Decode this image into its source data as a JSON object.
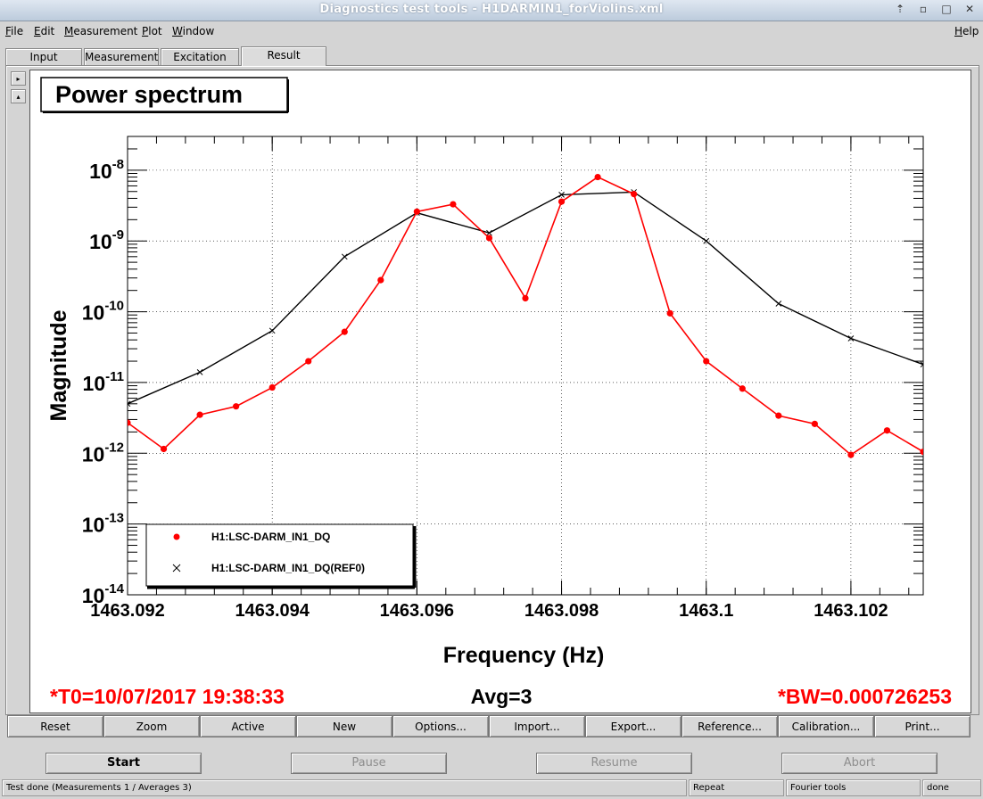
{
  "window": {
    "title": "Diagnostics test tools - H1DARMIN1_forViolins.xml",
    "controls": [
      "⇡",
      "▫",
      "□",
      "✕"
    ]
  },
  "menubar": {
    "items": [
      "File",
      "Edit",
      "Measurement",
      "Plot",
      "Window"
    ],
    "help": "Help"
  },
  "tabs": [
    {
      "label": "Input"
    },
    {
      "label": "Measurement"
    },
    {
      "label": "Excitation"
    },
    {
      "label": "Result",
      "active": true
    }
  ],
  "side_arrows": [
    "▸",
    "▴"
  ],
  "plot": {
    "title": "Power spectrum",
    "footer_left": "*T0=10/07/2017 19:38:33",
    "footer_center": "Avg=3",
    "footer_right": "*BW=0.000726253",
    "colors": {
      "series1": "#ff0000",
      "series2": "#000000",
      "footer": "#ff0000"
    }
  },
  "chart_data": {
    "type": "line",
    "title": "Power spectrum",
    "xlabel": "Frequency (Hz)",
    "ylabel": "Magnitude",
    "xlim": [
      1463.092,
      1463.103
    ],
    "ylim": [
      1e-14,
      3e-08
    ],
    "y_scale": "log",
    "grid": true,
    "legend_placement": "bottom-left",
    "x_ticks": [
      {
        "value": 1463.092,
        "label": "1463.092"
      },
      {
        "value": 1463.094,
        "label": "1463.094"
      },
      {
        "value": 1463.096,
        "label": "1463.096"
      },
      {
        "value": 1463.098,
        "label": "1463.098"
      },
      {
        "value": 1463.1,
        "label": "1463.1"
      },
      {
        "value": 1463.102,
        "label": "1463.102"
      }
    ],
    "y_ticks": [
      {
        "value": 1e-08,
        "mantissa": "10",
        "exp": "-8"
      },
      {
        "value": 1e-09,
        "mantissa": "10",
        "exp": "-9"
      },
      {
        "value": 1e-10,
        "mantissa": "10",
        "exp": "-10"
      },
      {
        "value": 1e-11,
        "mantissa": "10",
        "exp": "-11"
      },
      {
        "value": 1e-12,
        "mantissa": "10",
        "exp": "-12"
      },
      {
        "value": 1e-13,
        "mantissa": "10",
        "exp": "-13"
      },
      {
        "value": 1e-14,
        "mantissa": "10",
        "exp": "-14"
      }
    ],
    "series": [
      {
        "name": "H1:LSC-DARM_IN1_DQ",
        "marker": "circle",
        "color": "#ff0000",
        "x": [
          1463.092,
          1463.0925,
          1463.093,
          1463.0935,
          1463.094,
          1463.0945,
          1463.095,
          1463.0955,
          1463.096,
          1463.0965,
          1463.097,
          1463.0975,
          1463.098,
          1463.0985,
          1463.099,
          1463.0995,
          1463.1,
          1463.1005,
          1463.101,
          1463.1015,
          1463.102,
          1463.1025,
          1463.103,
          1463.1032
        ],
        "y": [
          2.7e-12,
          1.15e-12,
          3.5e-12,
          4.6e-12,
          8.5e-12,
          2e-11,
          5.2e-11,
          2.8e-10,
          2.6e-09,
          3.3e-09,
          1.1e-09,
          1.55e-10,
          3.6e-09,
          8e-09,
          4.6e-09,
          9.5e-11,
          2e-11,
          8.2e-12,
          3.4e-12,
          2.6e-12,
          9.5e-13,
          2.1e-12,
          1.05e-12,
          8.5e-13
        ]
      },
      {
        "name": "H1:LSC-DARM_IN1_DQ(REF0)",
        "marker": "cross",
        "color": "#000000",
        "x": [
          1463.092,
          1463.093,
          1463.094,
          1463.095,
          1463.096,
          1463.097,
          1463.098,
          1463.099,
          1463.1,
          1463.101,
          1463.102,
          1463.103,
          1463.1032
        ],
        "y": [
          5e-12,
          1.4e-11,
          5.4e-11,
          6e-10,
          2.5e-09,
          1.3e-09,
          4.5e-09,
          4.9e-09,
          1e-09,
          1.3e-10,
          4.2e-11,
          1.8e-11,
          1.65e-11
        ]
      }
    ]
  },
  "plot_buttons": [
    "Reset",
    "Zoom",
    "Active",
    "New",
    "Options...",
    "Import...",
    "Export...",
    "Reference...",
    "Calibration...",
    "Print..."
  ],
  "control_buttons": [
    {
      "label": "Start",
      "enabled": true
    },
    {
      "label": "Pause",
      "enabled": false
    },
    {
      "label": "Resume",
      "enabled": false
    },
    {
      "label": "Abort",
      "enabled": false
    }
  ],
  "statusbar": {
    "message": "Test done (Measurements 1 / Averages 3)",
    "mode": "Repeat",
    "tool": "Fourier tools",
    "state": "done"
  }
}
